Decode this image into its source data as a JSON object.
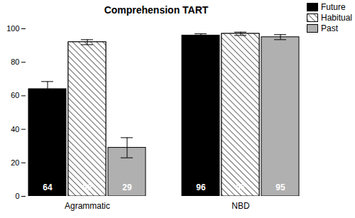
{
  "chart_data": {
    "type": "bar",
    "title": "Comprehension TART",
    "categories": [
      "Agrammatic",
      "NBD"
    ],
    "series": [
      {
        "name": "Future",
        "color": "#000000",
        "values": [
          64,
          96
        ],
        "errors": [
          4.5,
          1
        ]
      },
      {
        "name": "Habitual",
        "color": "#ffffff",
        "line_style": "hatched",
        "values": [
          92,
          97
        ],
        "errors": [
          1.5,
          1
        ]
      },
      {
        "name": "Past",
        "color": "#b0b0b0",
        "values": [
          29,
          95
        ],
        "errors": [
          6,
          1.5
        ]
      }
    ],
    "ylim": [
      0,
      100
    ],
    "yticks": [
      0,
      20,
      40,
      60,
      80,
      100
    ],
    "grid": false,
    "legend": "top-right",
    "data_labels": true
  }
}
